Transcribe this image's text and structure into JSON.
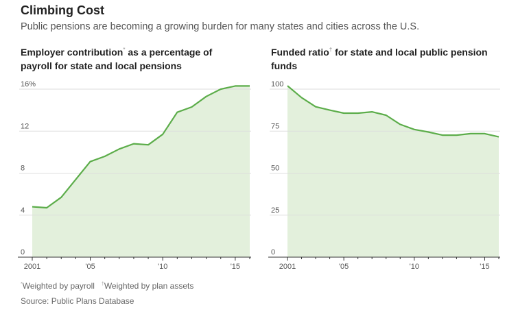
{
  "title": "Climbing Cost",
  "subtitle": "Public pensions are becoming a growing burden for many states and cities across the U.S.",
  "colors": {
    "line": "#5cad4a",
    "fill": "#e3f0dc",
    "grid": "#dddddd",
    "axis": "#333333"
  },
  "footnotes": {
    "star_symbol": "*",
    "star_text": "Weighted by payroll",
    "dagger_symbol": "†",
    "dagger_text": "Weighted by plan assets"
  },
  "source": "Source: Public Plans Database",
  "chart_data": [
    {
      "type": "area",
      "title_main": "Employer contribution",
      "title_marker": "*",
      "title_rest": " as a percentage of payroll for state and local pensions",
      "xlabel": "",
      "ylabel": "",
      "x": [
        2001,
        2002,
        2003,
        2004,
        2005,
        2006,
        2007,
        2008,
        2009,
        2010,
        2011,
        2012,
        2013,
        2014,
        2015,
        2016
      ],
      "values": [
        4.8,
        4.7,
        5.7,
        7.4,
        9.1,
        9.6,
        10.3,
        10.8,
        10.7,
        11.7,
        13.8,
        14.3,
        15.3,
        16.0,
        16.3,
        16.3
      ],
      "xlim": [
        2001,
        2016
      ],
      "ylim": [
        0,
        16
      ],
      "yticks": [
        0,
        4,
        8,
        12,
        16
      ],
      "ytick_labels": [
        "0",
        "4",
        "8",
        "12",
        "16%"
      ],
      "xticks": [
        2001,
        2005,
        2010,
        2015
      ],
      "xtick_labels": [
        "2001",
        "'05",
        "'10",
        "'15"
      ],
      "grid": true
    },
    {
      "type": "area",
      "title_main": "Funded ratio",
      "title_marker": "†",
      "title_rest": " for state and local public pension funds",
      "xlabel": "",
      "ylabel": "",
      "x": [
        2001,
        2002,
        2003,
        2004,
        2005,
        2006,
        2007,
        2008,
        2009,
        2010,
        2011,
        2012,
        2013,
        2014,
        2015,
        2016
      ],
      "values": [
        102,
        95,
        89.5,
        87.5,
        85.7,
        85.7,
        86.5,
        84.5,
        79,
        76,
        74.5,
        72.6,
        72.6,
        73.5,
        73.5,
        71.6
      ],
      "xlim": [
        2001,
        2016
      ],
      "ylim": [
        0,
        100
      ],
      "yticks": [
        0,
        25,
        50,
        75,
        100
      ],
      "ytick_labels": [
        "0",
        "25",
        "50",
        "75",
        "100"
      ],
      "xticks": [
        2001,
        2005,
        2010,
        2015
      ],
      "xtick_labels": [
        "2001",
        "'05",
        "'10",
        "'15"
      ],
      "grid": true
    }
  ]
}
